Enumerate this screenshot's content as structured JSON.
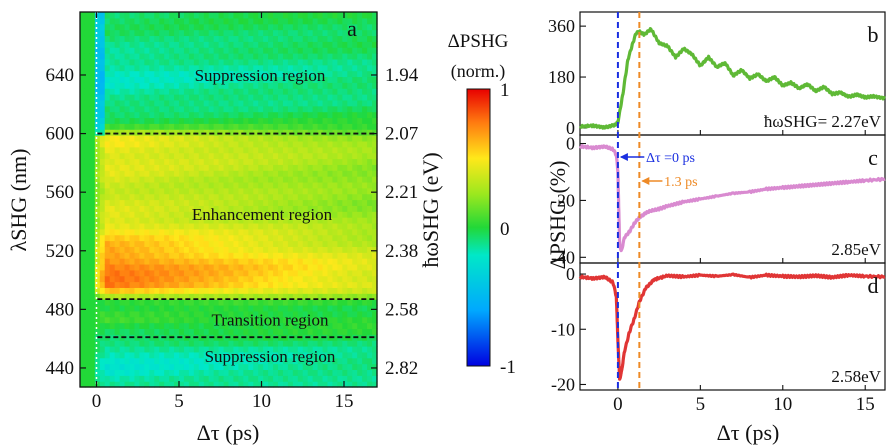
{
  "colors": {
    "trace_b": "#5fb936",
    "trace_c": "#d98ad0",
    "trace_d": "#e03535",
    "marker_zero": "#1a2fe0",
    "marker_1p3": "#ee8a26",
    "dashed_lines": "#111111"
  },
  "chart_data": [
    {
      "id": "a",
      "type": "heatmap",
      "panel_label": "a",
      "xlabel": "Δτ (ps)",
      "ylabel": "λSHG (nm)",
      "ylabel_right": "ħωSHG (eV)",
      "xlim": [
        -1,
        17
      ],
      "ylim": [
        427,
        683
      ],
      "x_ticks": [
        "0",
        "5",
        "10",
        "15"
      ],
      "x_tick_values": [
        0,
        5,
        10,
        15
      ],
      "y_ticks": [
        "440",
        "480",
        "520",
        "560",
        "600",
        "640"
      ],
      "y_tick_values": [
        440,
        480,
        520,
        560,
        600,
        640
      ],
      "y_right_ticks": [
        "2.82",
        "2.58",
        "2.38",
        "2.21",
        "2.07",
        "1.94"
      ],
      "y_right_tick_values": [
        440,
        480,
        520,
        560,
        600,
        640
      ],
      "boundaries_nm": [
        461,
        487,
        600
      ],
      "regions": [
        {
          "label": "Suppression region",
          "lambda": 640
        },
        {
          "label": "Enhancement region",
          "lambda": 545
        },
        {
          "label": "Transition region",
          "lambda": 473
        },
        {
          "label": "Suppression region",
          "lambda": 448
        }
      ],
      "colorbar": {
        "title_line1": "ΔPSHG",
        "title_line2": "(norm.)",
        "range": [
          -1,
          1
        ],
        "ticks": [
          "1",
          "0",
          "-1"
        ],
        "tick_values": [
          1,
          0,
          -1
        ]
      },
      "rows": [
        {
          "lambda": 683,
          "base": -0.05,
          "pre": -0.05
        },
        {
          "lambda": 660,
          "base": -0.1,
          "pre": -0.1
        },
        {
          "lambda": 640,
          "base": -0.2,
          "pre": -0.2
        },
        {
          "lambda": 620,
          "base": -0.12,
          "pre": -0.1
        },
        {
          "lambda": 606,
          "base": 0.02,
          "pre": 0.0
        },
        {
          "lambda": 596,
          "base": 0.5,
          "pre": 0.0
        },
        {
          "lambda": 585,
          "base": 0.45,
          "pre": 0.0
        },
        {
          "lambda": 570,
          "base": 0.4,
          "pre": 0.0
        },
        {
          "lambda": 555,
          "base": 0.38,
          "pre": 0.0
        },
        {
          "lambda": 540,
          "base": 0.45,
          "pre": 0.0
        },
        {
          "lambda": 525,
          "base": 0.6,
          "pre": 0.0
        },
        {
          "lambda": 510,
          "base": 0.75,
          "pre": 0.0
        },
        {
          "lambda": 495,
          "base": 0.75,
          "pre": 0.0
        },
        {
          "lambda": 489,
          "base": 0.35,
          "pre": 0.0
        },
        {
          "lambda": 484,
          "base": -0.05,
          "pre": 0.0
        },
        {
          "lambda": 473,
          "base": 0.05,
          "pre": 0.0
        },
        {
          "lambda": 462,
          "base": -0.05,
          "pre": 0.0
        },
        {
          "lambda": 452,
          "base": -0.18,
          "pre": 0.0
        },
        {
          "lambda": 440,
          "base": -0.22,
          "pre": 0.0
        },
        {
          "lambda": 427,
          "base": -0.15,
          "pre": 0.0
        }
      ]
    },
    {
      "id": "b",
      "type": "line",
      "panel_label": "b",
      "annotation": "ħωSHG= 2.27eV",
      "xlim": [
        -2.3,
        16.2
      ],
      "ylim": [
        -25,
        410
      ],
      "y_ticks": [
        "0",
        "180",
        "360"
      ],
      "y_tick_values": [
        0,
        180,
        360
      ],
      "x": [
        -2.3,
        -1.5,
        -0.8,
        -0.2,
        0.0,
        0.3,
        0.6,
        0.9,
        1.1,
        1.3,
        1.6,
        2.0,
        2.5,
        3.0,
        3.5,
        4.0,
        4.5,
        5.0,
        5.5,
        6.0,
        6.5,
        7.0,
        7.5,
        8.0,
        8.5,
        9.0,
        9.5,
        10.0,
        10.5,
        11.0,
        11.5,
        12.0,
        12.5,
        13.0,
        13.5,
        14.0,
        14.5,
        15.0,
        15.5,
        16.2
      ],
      "values": [
        5,
        8,
        2,
        10,
        20,
        120,
        240,
        300,
        335,
        340,
        330,
        350,
        300,
        290,
        250,
        280,
        260,
        220,
        250,
        215,
        230,
        185,
        205,
        175,
        190,
        165,
        180,
        150,
        160,
        140,
        155,
        130,
        145,
        120,
        125,
        110,
        118,
        108,
        112,
        105
      ]
    },
    {
      "id": "c",
      "type": "line",
      "panel_label": "c",
      "annotation": "2.85eV",
      "marker_labels": [
        "Δτ =0 ps",
        "1.3 ps"
      ],
      "xlim": [
        -2.3,
        16.2
      ],
      "ylim": [
        -42,
        3
      ],
      "y_ticks": [
        "0",
        "-20",
        "-40"
      ],
      "y_tick_values": [
        0,
        -20,
        -40
      ],
      "x": [
        -2.3,
        -1.5,
        -0.8,
        -0.3,
        -0.1,
        0.0,
        0.1,
        0.2,
        0.4,
        0.7,
        1.0,
        1.3,
        1.8,
        2.5,
        3.0,
        4.0,
        5.0,
        6.0,
        7.0,
        8.0,
        9.0,
        10.0,
        11.0,
        12.0,
        13.0,
        14.0,
        15.0,
        16.2
      ],
      "values": [
        -1,
        -1.5,
        -1,
        -2,
        -4,
        -10,
        -35,
        -38,
        -33,
        -31,
        -28,
        -26,
        -24,
        -23,
        -22,
        -20.5,
        -19.5,
        -18.5,
        -17.5,
        -17,
        -16,
        -15.5,
        -15,
        -14.5,
        -14,
        -13.5,
        -13,
        -12.5
      ]
    },
    {
      "id": "d",
      "type": "line",
      "panel_label": "d",
      "annotation": "2.58eV",
      "xlabel": "Δτ (ps)",
      "ylabel": "ΔPSHG (%)",
      "xlim": [
        -2.3,
        16.2
      ],
      "ylim": [
        -21,
        2
      ],
      "x_ticks": [
        "0",
        "5",
        "10",
        "15"
      ],
      "x_tick_values": [
        0,
        5,
        10,
        15
      ],
      "y_ticks": [
        "0",
        "-10",
        "-20"
      ],
      "y_tick_values": [
        0,
        -10,
        -20
      ],
      "x": [
        -2.3,
        -1.5,
        -0.8,
        -0.3,
        -0.1,
        0.0,
        0.1,
        0.2,
        0.4,
        0.7,
        1.0,
        1.3,
        1.7,
        2.2,
        3.0,
        4.0,
        5.0,
        6.0,
        7.0,
        8.0,
        9.0,
        10.0,
        11.0,
        12.0,
        13.0,
        14.0,
        15.0,
        16.2
      ],
      "values": [
        -0.5,
        -0.8,
        -0.5,
        -1.5,
        -4,
        -12,
        -19,
        -18,
        -14,
        -10.5,
        -8,
        -5,
        -2.5,
        -1,
        -0.3,
        -0.5,
        -0.2,
        -0.4,
        -0.1,
        -0.6,
        -0.2,
        -0.4,
        -0.5,
        -0.3,
        -0.6,
        -0.2,
        -0.4,
        -0.5
      ]
    }
  ]
}
